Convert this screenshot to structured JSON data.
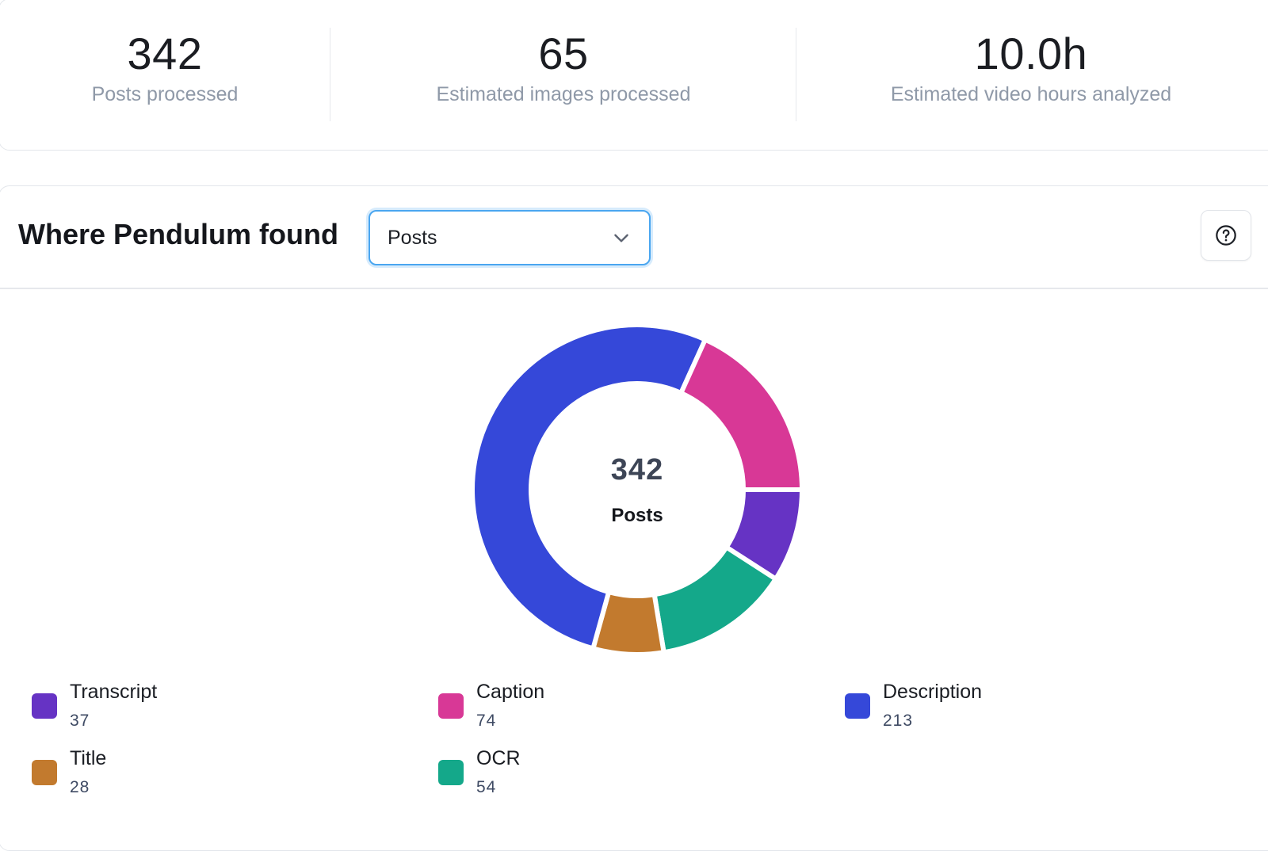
{
  "stats": [
    {
      "value": "342",
      "label": "Posts processed"
    },
    {
      "value": "65",
      "label": "Estimated images processed"
    },
    {
      "value": "10.0h",
      "label": "Estimated video hours analyzed"
    }
  ],
  "panel": {
    "title": "Where Pendulum found",
    "dropdown": {
      "selected": "Posts"
    },
    "help_icon": "question-circle-icon"
  },
  "chart_data": {
    "type": "pie",
    "donut": true,
    "center": {
      "value": "342",
      "label": "Posts"
    },
    "slices": [
      {
        "label": "Transcript",
        "value": 37,
        "color": "#6633c4"
      },
      {
        "label": "OCR",
        "value": 54,
        "color": "#14a88a"
      },
      {
        "label": "Title",
        "value": 28,
        "color": "#c27a2e"
      },
      {
        "label": "Description",
        "value": 213,
        "color": "#3548d9"
      },
      {
        "label": "Caption",
        "value": 74,
        "color": "#d83896"
      }
    ],
    "legend": [
      {
        "label": "Transcript",
        "count": "37",
        "color": "#6633c4"
      },
      {
        "label": "Caption",
        "count": "74",
        "color": "#d83896"
      },
      {
        "label": "Description",
        "count": "213",
        "color": "#3548d9"
      },
      {
        "label": "Title",
        "count": "28",
        "color": "#c27a2e"
      },
      {
        "label": "OCR",
        "count": "54",
        "color": "#14a88a"
      }
    ]
  }
}
